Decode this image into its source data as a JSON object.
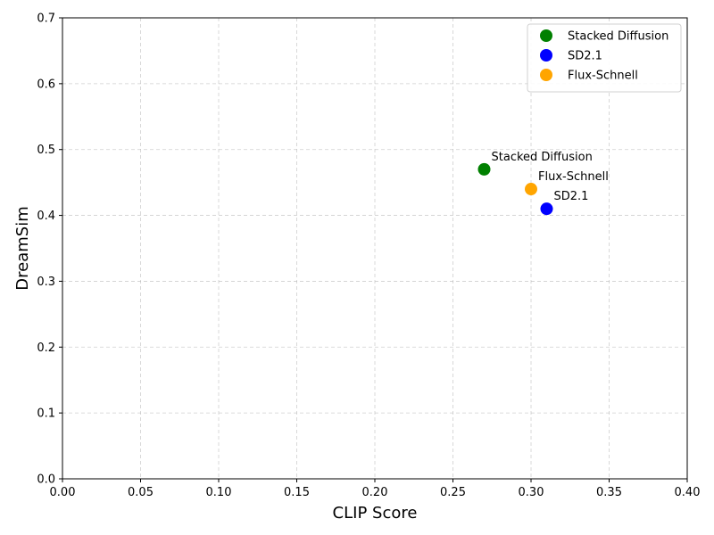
{
  "chart_data": {
    "type": "scatter",
    "title": "",
    "xlabel": "CLIP Score",
    "ylabel": "DreamSim",
    "xlim": [
      0.0,
      0.4
    ],
    "ylim": [
      0.0,
      0.7
    ],
    "xticks": [
      "0.00",
      "0.05",
      "0.10",
      "0.15",
      "0.20",
      "0.25",
      "0.30",
      "0.35",
      "0.40"
    ],
    "yticks": [
      "0.0",
      "0.1",
      "0.2",
      "0.3",
      "0.4",
      "0.5",
      "0.6",
      "0.7"
    ],
    "grid": true,
    "legend_position": "top-right",
    "series": [
      {
        "name": "Stacked Diffusion",
        "color": "#008000",
        "x": 0.27,
        "y": 0.47
      },
      {
        "name": "SD2.1",
        "color": "#0000ff",
        "x": 0.31,
        "y": 0.41
      },
      {
        "name": "Flux-Schnell",
        "color": "#ffa500",
        "x": 0.3,
        "y": 0.44
      }
    ]
  }
}
